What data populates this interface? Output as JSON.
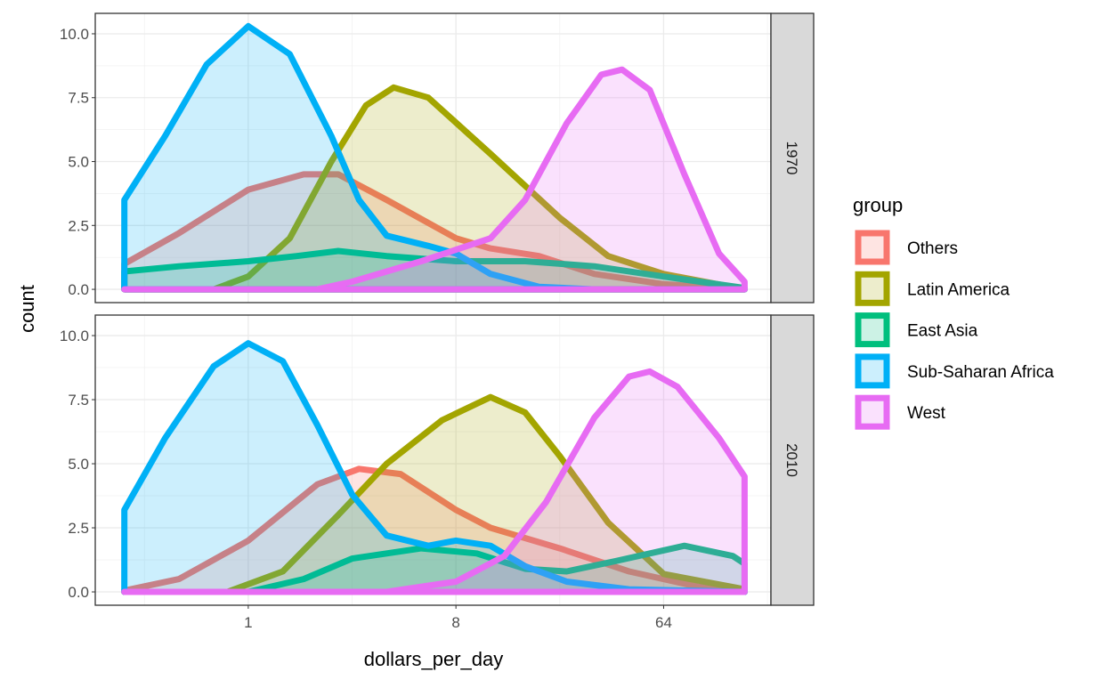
{
  "chart_data": {
    "type": "area",
    "subtype": "density (faceted)",
    "xlabel": "dollars_per_day",
    "ylabel": "count",
    "x_scale": "log2",
    "x_ticks": [
      {
        "value": 1,
        "label": "1"
      },
      {
        "value": 8,
        "label": "8"
      },
      {
        "value": 64,
        "label": "64"
      }
    ],
    "y_ticks": [
      {
        "value": 0,
        "label": "0.0"
      },
      {
        "value": 2.5,
        "label": "2.5"
      },
      {
        "value": 5,
        "label": "5.0"
      },
      {
        "value": 7.5,
        "label": "7.5"
      },
      {
        "value": 10,
        "label": "10.0"
      }
    ],
    "xlim_log2": [
      -2.21,
      7.55
    ],
    "ylim": [
      -0.52,
      10.8
    ],
    "legend": {
      "title": "group",
      "placement": "right",
      "entries": [
        "Others",
        "Latin America",
        "East Asia",
        "Sub-Saharan Africa",
        "West"
      ]
    },
    "colors": {
      "Others": "#F8766D",
      "Latin America": "#A3A500",
      "East Asia": "#00BF7D",
      "Sub-Saharan Africa": "#00B0F6",
      "West": "#E76BF3"
    },
    "note": "x values are log2(dollars_per_day)",
    "panels": [
      {
        "label": "1970",
        "series": [
          {
            "name": "Others",
            "points": [
              [
                -1.79,
                1.0
              ],
              [
                -1,
                2.2
              ],
              [
                0,
                3.9
              ],
              [
                0.8,
                4.5
              ],
              [
                1.3,
                4.5
              ],
              [
                2,
                3.5
              ],
              [
                3,
                2.0
              ],
              [
                3.5,
                1.6
              ],
              [
                4.2,
                1.3
              ],
              [
                5,
                0.6
              ],
              [
                6,
                0.2
              ],
              [
                7.17,
                0
              ]
            ]
          },
          {
            "name": "Latin America",
            "points": [
              [
                -1.79,
                0
              ],
              [
                -0.5,
                0
              ],
              [
                0,
                0.5
              ],
              [
                0.6,
                2.0
              ],
              [
                1.2,
                5
              ],
              [
                1.7,
                7.2
              ],
              [
                2.1,
                7.9
              ],
              [
                2.6,
                7.5
              ],
              [
                3.5,
                5.3
              ],
              [
                4.5,
                2.8
              ],
              [
                5.2,
                1.3
              ],
              [
                6,
                0.6
              ],
              [
                7.17,
                0
              ]
            ]
          },
          {
            "name": "East Asia",
            "points": [
              [
                -1.79,
                0.7
              ],
              [
                -1,
                0.9
              ],
              [
                0,
                1.1
              ],
              [
                0.7,
                1.3
              ],
              [
                1.3,
                1.5
              ],
              [
                2,
                1.3
              ],
              [
                3,
                1.1
              ],
              [
                4,
                1.1
              ],
              [
                5,
                0.9
              ],
              [
                6,
                0.5
              ],
              [
                7.17,
                0.05
              ]
            ]
          },
          {
            "name": "Sub-Saharan Africa",
            "points": [
              [
                -1.79,
                3.5
              ],
              [
                -1.2,
                6
              ],
              [
                -0.6,
                8.8
              ],
              [
                0,
                10.3
              ],
              [
                0.6,
                9.2
              ],
              [
                1.2,
                6
              ],
              [
                1.6,
                3.5
              ],
              [
                2.0,
                2.1
              ],
              [
                2.6,
                1.7
              ],
              [
                3.0,
                1.4
              ],
              [
                3.5,
                0.6
              ],
              [
                4.2,
                0.1
              ],
              [
                5,
                0
              ],
              [
                7.17,
                0
              ]
            ]
          },
          {
            "name": "West",
            "points": [
              [
                -1.79,
                0
              ],
              [
                1,
                0
              ],
              [
                1.5,
                0.3
              ],
              [
                2.5,
                1.1
              ],
              [
                3.5,
                2.0
              ],
              [
                4,
                3.5
              ],
              [
                4.6,
                6.5
              ],
              [
                5.1,
                8.4
              ],
              [
                5.4,
                8.6
              ],
              [
                5.8,
                7.8
              ],
              [
                6.3,
                4.5
              ],
              [
                6.8,
                1.4
              ],
              [
                7.17,
                0.3
              ]
            ]
          }
        ]
      },
      {
        "label": "2010",
        "series": [
          {
            "name": "Others",
            "points": [
              [
                -1.79,
                0.05
              ],
              [
                -1,
                0.5
              ],
              [
                0,
                2.0
              ],
              [
                1,
                4.2
              ],
              [
                1.6,
                4.8
              ],
              [
                2.2,
                4.6
              ],
              [
                3,
                3.2
              ],
              [
                3.5,
                2.5
              ],
              [
                4.5,
                1.7
              ],
              [
                5.5,
                0.8
              ],
              [
                6.5,
                0.2
              ],
              [
                7.17,
                0.1
              ]
            ]
          },
          {
            "name": "Latin America",
            "points": [
              [
                -1.79,
                0
              ],
              [
                -0.3,
                0
              ],
              [
                0.5,
                0.8
              ],
              [
                1.3,
                3
              ],
              [
                2,
                5
              ],
              [
                2.8,
                6.7
              ],
              [
                3.5,
                7.6
              ],
              [
                4,
                7.0
              ],
              [
                4.5,
                5.3
              ],
              [
                5.2,
                2.7
              ],
              [
                6,
                0.7
              ],
              [
                7.17,
                0.1
              ]
            ]
          },
          {
            "name": "East Asia",
            "points": [
              [
                -1.79,
                0
              ],
              [
                0,
                0
              ],
              [
                0.8,
                0.5
              ],
              [
                1.5,
                1.3
              ],
              [
                2.5,
                1.7
              ],
              [
                3.3,
                1.5
              ],
              [
                4,
                0.9
              ],
              [
                4.6,
                0.8
              ],
              [
                5.3,
                1.2
              ],
              [
                6.3,
                1.8
              ],
              [
                7,
                1.4
              ],
              [
                7.17,
                1.1
              ]
            ]
          },
          {
            "name": "Sub-Saharan Africa",
            "points": [
              [
                -1.79,
                3.2
              ],
              [
                -1.2,
                6
              ],
              [
                -0.5,
                8.8
              ],
              [
                0,
                9.7
              ],
              [
                0.5,
                9.0
              ],
              [
                1,
                6.5
              ],
              [
                1.5,
                3.8
              ],
              [
                2,
                2.2
              ],
              [
                2.6,
                1.8
              ],
              [
                3.0,
                2.0
              ],
              [
                3.5,
                1.8
              ],
              [
                4,
                1.0
              ],
              [
                4.6,
                0.4
              ],
              [
                5.5,
                0.1
              ],
              [
                7.17,
                0
              ]
            ]
          },
          {
            "name": "West",
            "points": [
              [
                -1.79,
                0
              ],
              [
                2,
                0
              ],
              [
                3,
                0.4
              ],
              [
                3.7,
                1.4
              ],
              [
                4.3,
                3.5
              ],
              [
                5,
                6.8
              ],
              [
                5.5,
                8.4
              ],
              [
                5.8,
                8.6
              ],
              [
                6.2,
                8.0
              ],
              [
                6.8,
                6
              ],
              [
                7.17,
                4.5
              ]
            ]
          }
        ]
      }
    ]
  }
}
